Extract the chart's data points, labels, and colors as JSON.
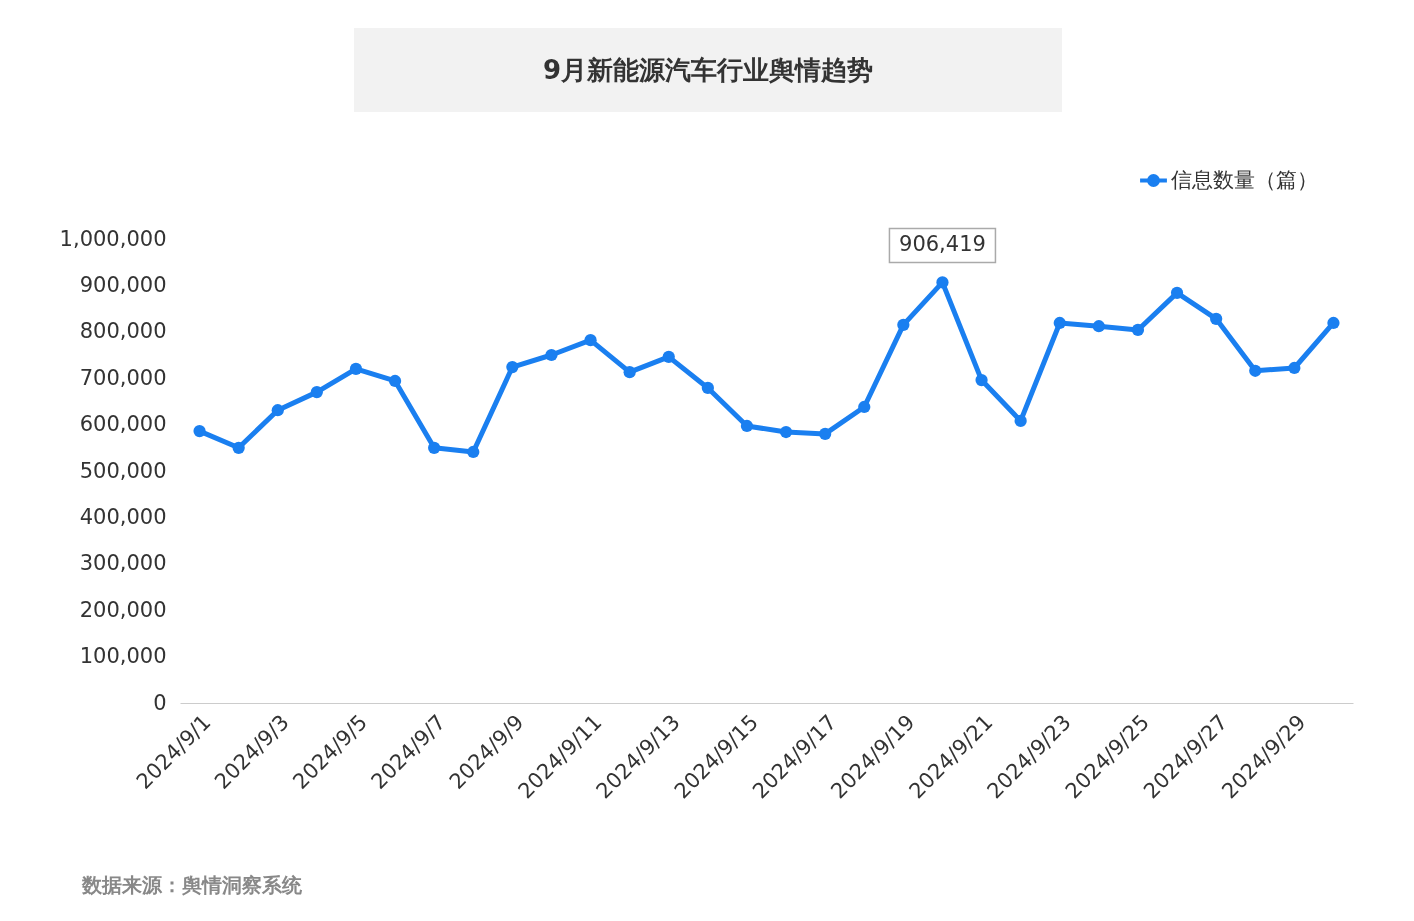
{
  "chart_data": {
    "type": "line",
    "title": "9月新能源汽车行业舆情趋势",
    "categories": [
      "2024/9/1",
      null,
      "2024/9/3",
      null,
      "2024/9/5",
      null,
      "2024/9/7",
      null,
      "2024/9/9",
      null,
      "2024/9/11",
      null,
      "2024/9/13",
      null,
      "2024/9/15",
      null,
      "2024/9/17",
      null,
      "2024/9/19",
      null,
      "2024/9/21",
      null,
      "2024/9/23",
      null,
      "2024/9/25",
      null,
      "2024/9/27",
      null,
      "2024/9/29",
      null
    ],
    "series": [
      {
        "name": "信息数量（篇）",
        "color": "#1a7ff0",
        "values": [
          586000,
          550000,
          631000,
          670000,
          720000,
          694000,
          550000,
          541000,
          724000,
          750000,
          782000,
          713000,
          746000,
          679000,
          597000,
          584000,
          580000,
          638000,
          815000,
          906419,
          696000,
          608000,
          819000,
          812000,
          804000,
          884000,
          828000,
          716000,
          722000,
          819000
        ]
      }
    ],
    "ylim": [
      0,
      1000000
    ],
    "yticks": [
      0,
      {
        "value": 100000,
        "label": "100,000"
      },
      {
        "value": 200000,
        "label": "200,000"
      },
      {
        "value": 300000,
        "label": "300,000"
      },
      {
        "value": 400000,
        "label": "400,000"
      },
      {
        "value": 500000,
        "label": "500,000"
      },
      {
        "value": 600000,
        "label": "600,000"
      },
      {
        "value": 700000,
        "label": "700,000"
      },
      {
        "value": 800000,
        "label": "800,000"
      },
      {
        "value": 900000,
        "label": "900,000"
      },
      {
        "value": 1000000,
        "label": "1,000,000"
      }
    ],
    "grid": false,
    "legend": "top right",
    "marker": "circle",
    "annotations": [
      {
        "text": "906,419",
        "y": 906419
      },
      "数据来源：舆情洞察系统"
    ]
  }
}
